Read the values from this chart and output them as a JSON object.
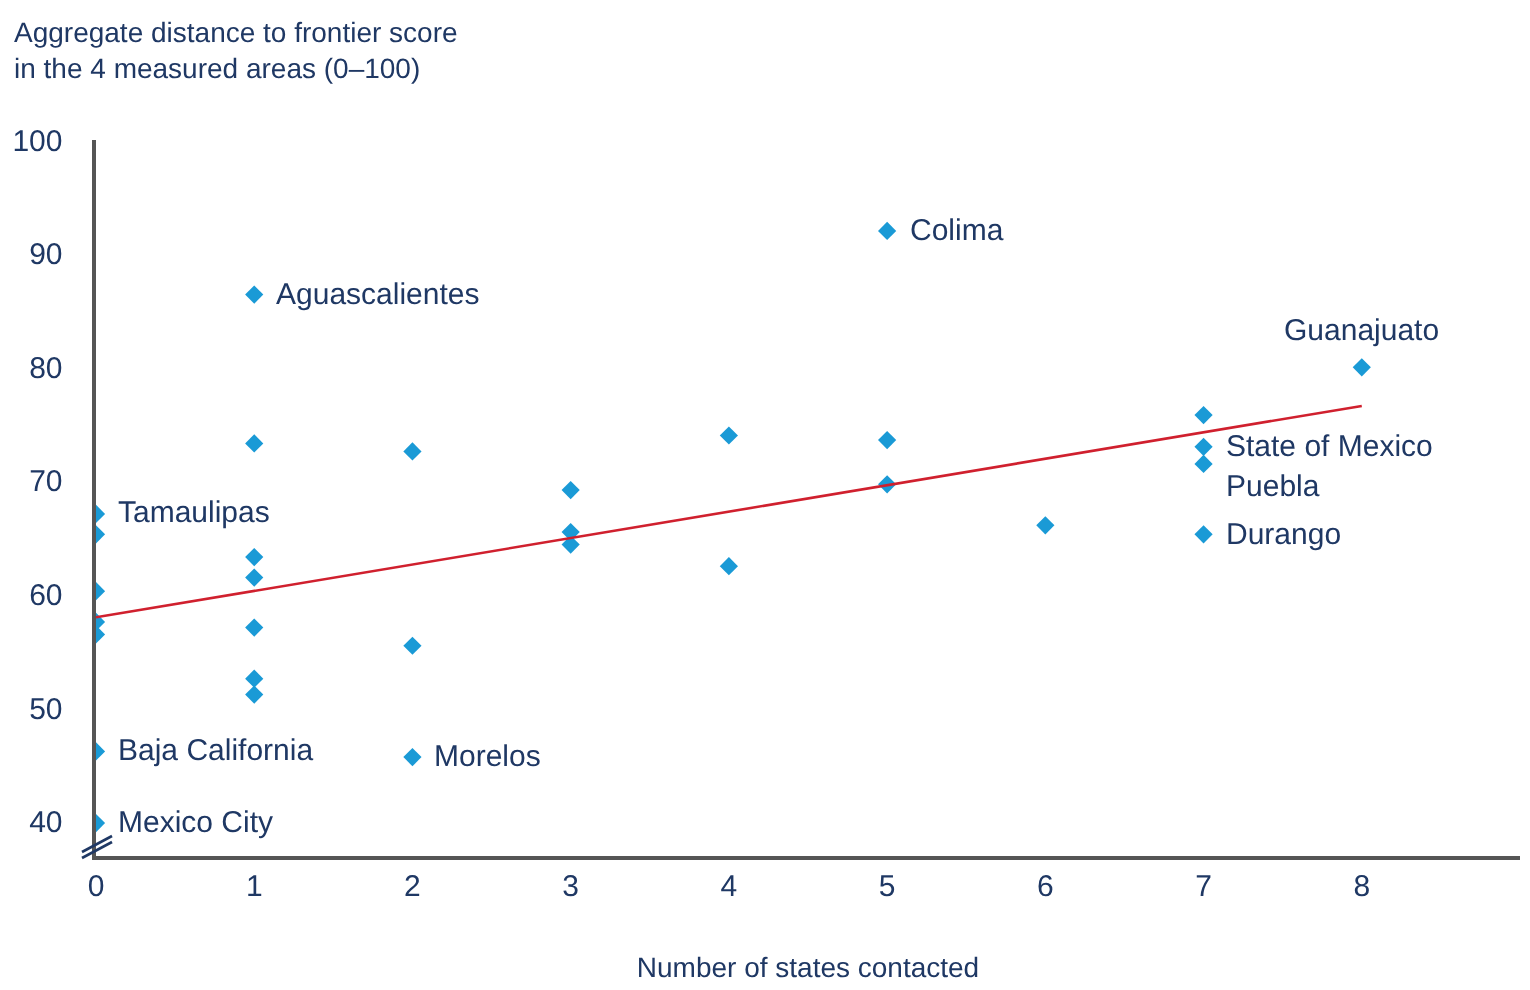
{
  "chart_data": {
    "type": "scatter",
    "ylabel": "Aggregate distance to frontier score\nin the 4 measured areas (0–100)",
    "xlabel": "Number of states contacted",
    "xlim": [
      0,
      9
    ],
    "xticks": [
      0,
      1,
      2,
      3,
      4,
      5,
      6,
      7,
      8
    ],
    "ylim": [
      37,
      100
    ],
    "yticks": [
      40,
      50,
      60,
      70,
      80,
      90,
      100
    ],
    "grid": false,
    "legend": false,
    "marker": "diamond",
    "series": [
      {
        "color": "#1a9ad6",
        "x": [
          0,
          0,
          0,
          0,
          0,
          0,
          0,
          1,
          1,
          1,
          1,
          1,
          1,
          1,
          2,
          2,
          2,
          3,
          3,
          3,
          4,
          4,
          5,
          5,
          5,
          6,
          7,
          7,
          7,
          7,
          8
        ],
        "values": [
          67.1,
          65.3,
          60.3,
          57.6,
          56.5,
          46.2,
          39.9,
          86.4,
          73.3,
          63.3,
          61.5,
          57.1,
          52.6,
          51.2,
          72.6,
          55.5,
          45.7,
          69.2,
          65.5,
          64.4,
          74.0,
          62.5,
          92.0,
          73.6,
          69.7,
          66.1,
          75.8,
          73.0,
          71.5,
          65.3,
          80.0
        ]
      },
      {
        "type": "line",
        "marker": "none",
        "color": "#d0202e",
        "x": [
          0,
          8
        ],
        "values": [
          58.0,
          76.6
        ]
      }
    ],
    "annotations": [
      {
        "text": "Tamaulipas",
        "x": 0,
        "y": 67.1
      },
      {
        "text": "Baja California",
        "x": 0,
        "y": 46.2
      },
      {
        "text": "Mexico City",
        "x": 0,
        "y": 39.9
      },
      {
        "text": "Aguascalientes",
        "x": 1,
        "y": 86.4
      },
      {
        "text": "Morelos",
        "x": 2,
        "y": 45.7
      },
      {
        "text": "Colima",
        "x": 5,
        "y": 92.0
      },
      {
        "text": "Guanajuato",
        "x": 8,
        "y": 80.0
      },
      {
        "text": "State of Mexico",
        "x": 7,
        "y": 73.0
      },
      {
        "text": "Puebla",
        "x": 7,
        "y": 71.5
      },
      {
        "text": "Durango",
        "x": 7,
        "y": 65.3
      }
    ]
  }
}
